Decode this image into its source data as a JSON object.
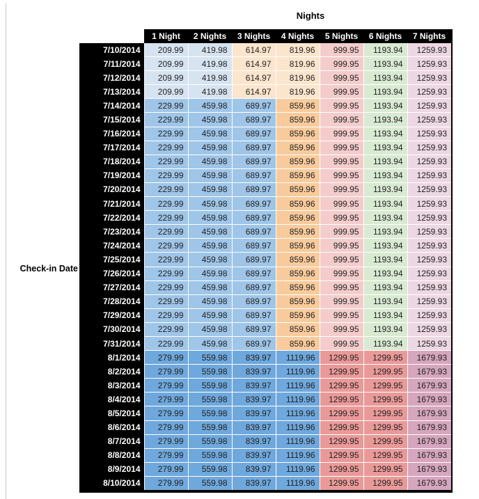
{
  "title": "Nights",
  "row_axis_label": "Check-in Date",
  "columns": [
    "1 Night",
    "2 Nights",
    "3 Nights",
    "4 Nights",
    "5 Nights",
    "6 Nights",
    "7 Nights"
  ],
  "colors": {
    "header_bg": "#000000",
    "header_text": "#ffffff",
    "pale_blue": "#d6e3f1",
    "pale_orange": "#fce5cd",
    "light_red": "#f4cccc",
    "light_green": "#d9ead3",
    "light_purple": "#ecd7e2",
    "medium_blue": "#9fc5e8",
    "medium_orange": "#f9cb9c",
    "strong_blue": "#6fa8dc",
    "salmon_red": "#ea9999",
    "mauve_purple": "#d5a6bd"
  },
  "band_color_keys": {
    "early_july": [
      "pale_blue",
      "pale_blue",
      "pale_orange",
      "pale_orange",
      "light_red",
      "light_green",
      "light_purple"
    ],
    "mid_july": [
      "medium_blue",
      "medium_blue",
      "medium_blue",
      "medium_orange",
      "light_red",
      "light_green",
      "light_purple"
    ],
    "august": [
      "strong_blue",
      "strong_blue",
      "strong_blue",
      "strong_blue",
      "salmon_red",
      "salmon_red",
      "mauve_purple"
    ]
  },
  "chart_data": {
    "type": "table",
    "title": "Nights",
    "row_header": "Check-in Date",
    "columns": [
      "1 Night",
      "2 Nights",
      "3 Nights",
      "4 Nights",
      "5 Nights",
      "6 Nights",
      "7 Nights"
    ],
    "rows": [
      {
        "date": "7/10/2014",
        "band": "early_july",
        "values": [
          209.99,
          419.98,
          614.97,
          819.96,
          999.95,
          1193.94,
          1259.93
        ]
      },
      {
        "date": "7/11/2014",
        "band": "early_july",
        "values": [
          209.99,
          419.98,
          614.97,
          819.96,
          999.95,
          1193.94,
          1259.93
        ]
      },
      {
        "date": "7/12/2014",
        "band": "early_july",
        "values": [
          209.99,
          419.98,
          614.97,
          819.96,
          999.95,
          1193.94,
          1259.93
        ]
      },
      {
        "date": "7/13/2014",
        "band": "early_july",
        "values": [
          209.99,
          419.98,
          614.97,
          819.96,
          999.95,
          1193.94,
          1259.93
        ]
      },
      {
        "date": "7/14/2014",
        "band": "mid_july",
        "values": [
          229.99,
          459.98,
          689.97,
          859.96,
          999.95,
          1193.94,
          1259.93
        ]
      },
      {
        "date": "7/15/2014",
        "band": "mid_july",
        "values": [
          229.99,
          459.98,
          689.97,
          859.96,
          999.95,
          1193.94,
          1259.93
        ]
      },
      {
        "date": "7/16/2014",
        "band": "mid_july",
        "values": [
          229.99,
          459.98,
          689.97,
          859.96,
          999.95,
          1193.94,
          1259.93
        ]
      },
      {
        "date": "7/17/2014",
        "band": "mid_july",
        "values": [
          229.99,
          459.98,
          689.97,
          859.96,
          999.95,
          1193.94,
          1259.93
        ]
      },
      {
        "date": "7/18/2014",
        "band": "mid_july",
        "values": [
          229.99,
          459.98,
          689.97,
          859.96,
          999.95,
          1193.94,
          1259.93
        ]
      },
      {
        "date": "7/19/2014",
        "band": "mid_july",
        "values": [
          229.99,
          459.98,
          689.97,
          859.96,
          999.95,
          1193.94,
          1259.93
        ]
      },
      {
        "date": "7/20/2014",
        "band": "mid_july",
        "values": [
          229.99,
          459.98,
          689.97,
          859.96,
          999.95,
          1193.94,
          1259.93
        ]
      },
      {
        "date": "7/21/2014",
        "band": "mid_july",
        "values": [
          229.99,
          459.98,
          689.97,
          859.96,
          999.95,
          1193.94,
          1259.93
        ]
      },
      {
        "date": "7/22/2014",
        "band": "mid_july",
        "values": [
          229.99,
          459.98,
          689.97,
          859.96,
          999.95,
          1193.94,
          1259.93
        ]
      },
      {
        "date": "7/23/2014",
        "band": "mid_july",
        "values": [
          229.99,
          459.98,
          689.97,
          859.96,
          999.95,
          1193.94,
          1259.93
        ]
      },
      {
        "date": "7/24/2014",
        "band": "mid_july",
        "values": [
          229.99,
          459.98,
          689.97,
          859.96,
          999.95,
          1193.94,
          1259.93
        ]
      },
      {
        "date": "7/25/2014",
        "band": "mid_july",
        "values": [
          229.99,
          459.98,
          689.97,
          859.96,
          999.95,
          1193.94,
          1259.93
        ]
      },
      {
        "date": "7/26/2014",
        "band": "mid_july",
        "values": [
          229.99,
          459.98,
          689.97,
          859.96,
          999.95,
          1193.94,
          1259.93
        ]
      },
      {
        "date": "7/27/2014",
        "band": "mid_july",
        "values": [
          229.99,
          459.98,
          689.97,
          859.96,
          999.95,
          1193.94,
          1259.93
        ]
      },
      {
        "date": "7/28/2014",
        "band": "mid_july",
        "values": [
          229.99,
          459.98,
          689.97,
          859.96,
          999.95,
          1193.94,
          1259.93
        ]
      },
      {
        "date": "7/29/2014",
        "band": "mid_july",
        "values": [
          229.99,
          459.98,
          689.97,
          859.96,
          999.95,
          1193.94,
          1259.93
        ]
      },
      {
        "date": "7/30/2014",
        "band": "mid_july",
        "values": [
          229.99,
          459.98,
          689.97,
          859.96,
          999.95,
          1193.94,
          1259.93
        ]
      },
      {
        "date": "7/31/2014",
        "band": "mid_july",
        "values": [
          229.99,
          459.98,
          689.97,
          859.96,
          999.95,
          1193.94,
          1259.93
        ]
      },
      {
        "date": "8/1/2014",
        "band": "august",
        "values": [
          279.99,
          559.98,
          839.97,
          1119.96,
          1299.95,
          1299.95,
          1679.93
        ]
      },
      {
        "date": "8/2/2014",
        "band": "august",
        "values": [
          279.99,
          559.98,
          839.97,
          1119.96,
          1299.95,
          1299.95,
          1679.93
        ]
      },
      {
        "date": "8/3/2014",
        "band": "august",
        "values": [
          279.99,
          559.98,
          839.97,
          1119.96,
          1299.95,
          1299.95,
          1679.93
        ]
      },
      {
        "date": "8/4/2014",
        "band": "august",
        "values": [
          279.99,
          559.98,
          839.97,
          1119.96,
          1299.95,
          1299.95,
          1679.93
        ]
      },
      {
        "date": "8/5/2014",
        "band": "august",
        "values": [
          279.99,
          559.98,
          839.97,
          1119.96,
          1299.95,
          1299.95,
          1679.93
        ]
      },
      {
        "date": "8/6/2014",
        "band": "august",
        "values": [
          279.99,
          559.98,
          839.97,
          1119.96,
          1299.95,
          1299.95,
          1679.93
        ]
      },
      {
        "date": "8/7/2014",
        "band": "august",
        "values": [
          279.99,
          559.98,
          839.97,
          1119.96,
          1299.95,
          1299.95,
          1679.93
        ]
      },
      {
        "date": "8/8/2014",
        "band": "august",
        "values": [
          279.99,
          559.98,
          839.97,
          1119.96,
          1299.95,
          1299.95,
          1679.93
        ]
      },
      {
        "date": "8/9/2014",
        "band": "august",
        "values": [
          279.99,
          559.98,
          839.97,
          1119.96,
          1299.95,
          1299.95,
          1679.93
        ]
      },
      {
        "date": "8/10/2014",
        "band": "august",
        "values": [
          279.99,
          559.98,
          839.97,
          1119.96,
          1299.95,
          1299.95,
          1679.93
        ]
      }
    ]
  }
}
